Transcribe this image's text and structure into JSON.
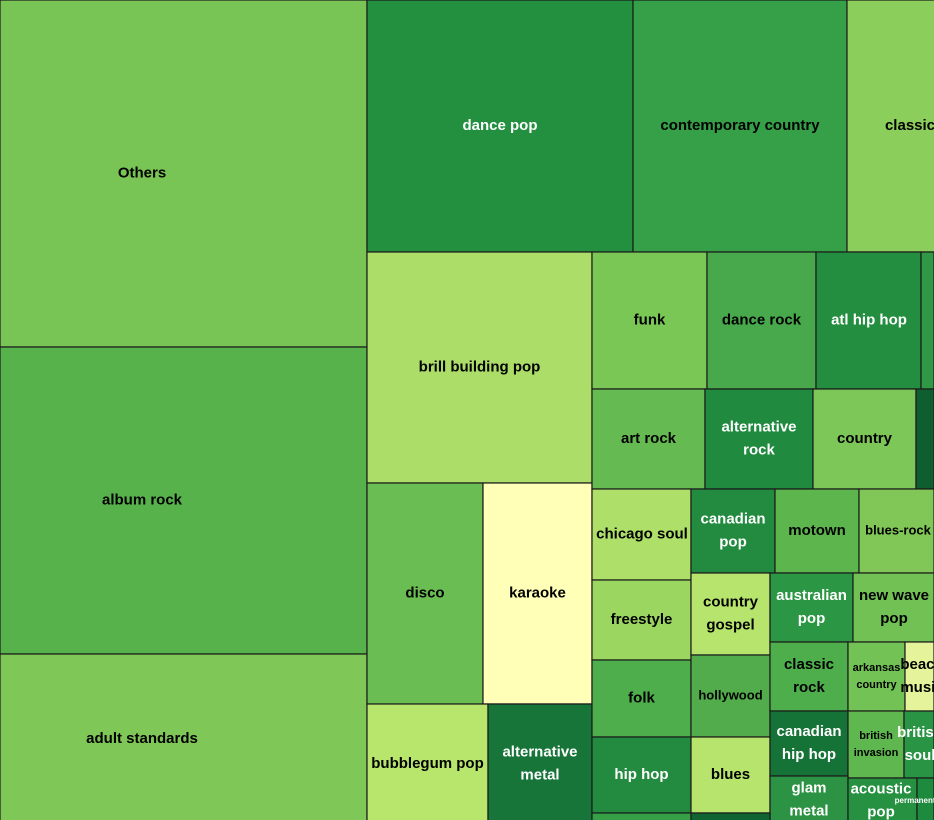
{
  "chart_data": {
    "type": "treemap",
    "title": "",
    "tiles": [
      {
        "label": "Others",
        "color": "#78c454"
      },
      {
        "label": "album rock",
        "color": "#57b24c"
      },
      {
        "label": "adult standards",
        "color": "#7fc757"
      },
      {
        "label": "dance pop",
        "color": "#239040"
      },
      {
        "label": "contemporary country",
        "color": "#35a047"
      },
      {
        "label": "classic",
        "color": "#8cce5c"
      },
      {
        "label": "brill building pop",
        "color": "#abdd68"
      },
      {
        "label": "disco",
        "color": "#69bd53"
      },
      {
        "label": "karaoke",
        "color": "#ffffb7"
      },
      {
        "label": "bubblegum pop",
        "color": "#b8e56c"
      },
      {
        "label": "alternative metal",
        "color": "#18753a"
      },
      {
        "label": "funk",
        "color": "#7ac756"
      },
      {
        "label": "dance rock",
        "color": "#47a84c"
      },
      {
        "label": "atl hip hop",
        "color": "#238e40"
      },
      {
        "label": "",
        "color": "#2f9946"
      },
      {
        "label": "art rock",
        "color": "#65ba51"
      },
      {
        "label": "alternative rock",
        "color": "#208a3f"
      },
      {
        "label": "country",
        "color": "#7dc658"
      },
      {
        "label": "",
        "color": "#0f5e30"
      },
      {
        "label": "chicago soul",
        "color": "#addf69"
      },
      {
        "label": "canadian pop",
        "color": "#228b3f"
      },
      {
        "label": "motown",
        "color": "#5db54e"
      },
      {
        "label": "blues-rock",
        "color": "#80c758"
      },
      {
        "label": "freestyle",
        "color": "#9bd661"
      },
      {
        "label": "country gospel",
        "color": "#b6e46c"
      },
      {
        "label": "australian pop",
        "color": "#2b9643"
      },
      {
        "label": "new wave pop",
        "color": "#71c155"
      },
      {
        "label": "folk",
        "color": "#4fae4c"
      },
      {
        "label": "hollywood",
        "color": "#52ac4c"
      },
      {
        "label": "classic rock",
        "color": "#4fae4c"
      },
      {
        "label": "arkansas country",
        "color": "#72c255"
      },
      {
        "label": "beach music",
        "color": "#e5f49a"
      },
      {
        "label": "hip hop",
        "color": "#228b3f"
      },
      {
        "label": "blues",
        "color": "#b6e46c"
      },
      {
        "label": "canadian hip hop",
        "color": "#167337"
      },
      {
        "label": "british invasion",
        "color": "#5fb84f"
      },
      {
        "label": "british soul",
        "color": "#2a9445"
      },
      {
        "label": "glam metal",
        "color": "#2b9343"
      },
      {
        "label": "acoustic pop",
        "color": "#259141"
      },
      {
        "label": "permanent wave",
        "color": "#1e8a3e"
      },
      {
        "label": "",
        "color": "#36a046"
      },
      {
        "label": "",
        "color": "#0f6432"
      }
    ]
  }
}
